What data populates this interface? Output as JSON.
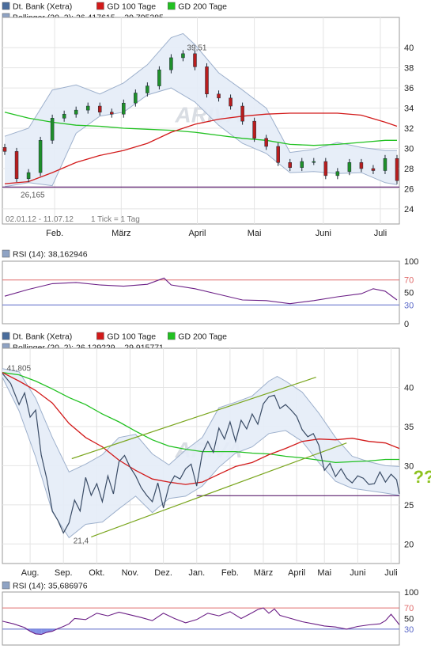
{
  "chart_data": [
    {
      "type": "line",
      "panel": "price",
      "legend": [
        {
          "label": "Dt. Bank (Xetra)",
          "color": "#4a6d9c"
        },
        {
          "label": "GD 100 Tage",
          "color": "#d21a1a"
        },
        {
          "label": "GD 200 Tage",
          "color": "#21c121"
        },
        {
          "label": "Bollinger (20, 2): 26,417615 – 29,795385",
          "color": "#8fa3c4"
        }
      ],
      "range_text": "02.01.12 - 11.07.12",
      "tick_text": "1 Tick = 1 Tag",
      "ylim": [
        22.5,
        43
      ],
      "yticks": [
        24,
        26,
        28,
        30,
        32,
        34,
        36,
        38,
        40
      ],
      "xticks": [
        {
          "label": "Feb.",
          "x": 22
        },
        {
          "label": "März",
          "x": 50
        },
        {
          "label": "April",
          "x": 82
        },
        {
          "label": "Mai",
          "x": 106
        },
        {
          "label": "Juni",
          "x": 135
        },
        {
          "label": "Juli",
          "x": 159
        }
      ],
      "annotations": [
        {
          "text": "39,51",
          "x": 77,
          "y": 39.51
        },
        {
          "text": "26,165",
          "x": 7,
          "y": 26.165
        }
      ],
      "hline": 26.165,
      "close": {
        "x": [
          1,
          6,
          11,
          16,
          21,
          26,
          31,
          36,
          41,
          46,
          51,
          56,
          61,
          66,
          71,
          76,
          81,
          86,
          91,
          96,
          101,
          106,
          111,
          116,
          121,
          126,
          131,
          136,
          141,
          146,
          151,
          156,
          161,
          166
        ],
        "y": [
          29.7,
          27.0,
          27.6,
          30.8,
          33.0,
          33.4,
          33.8,
          34.2,
          33.6,
          33.4,
          34.5,
          35.5,
          36.2,
          37.8,
          39.0,
          39.4,
          38.1,
          35.4,
          35.0,
          34.2,
          32.7,
          31.0,
          30.2,
          28.6,
          28.1,
          28.7,
          28.7,
          27.3,
          27.7,
          28.6,
          28.0,
          27.8,
          29.0,
          26.8
        ]
      },
      "bollinger_upper": {
        "x": [
          1,
          11,
          21,
          31,
          41,
          51,
          61,
          71,
          76,
          81,
          91,
          101,
          111,
          121,
          131,
          141,
          151,
          161,
          166
        ],
        "y": [
          31.2,
          32.0,
          35.8,
          36.3,
          35.4,
          36.5,
          38.3,
          41.0,
          41.4,
          40.3,
          37.5,
          35.8,
          34.0,
          29.6,
          29.9,
          30.6,
          30.1,
          29.8,
          29.8
        ]
      },
      "bollinger_lower": {
        "x": [
          1,
          11,
          21,
          31,
          41,
          51,
          61,
          71,
          81,
          91,
          101,
          111,
          121,
          131,
          141,
          151,
          161,
          166
        ],
        "y": [
          26.2,
          26.6,
          26.3,
          31.5,
          33.2,
          33.6,
          35.3,
          36.0,
          34.6,
          32.3,
          30.5,
          29.5,
          27.6,
          27.7,
          27.5,
          27.6,
          26.6,
          26.4
        ]
      },
      "gd100": {
        "x": [
          1,
          11,
          21,
          31,
          41,
          51,
          61,
          71,
          81,
          91,
          101,
          111,
          121,
          131,
          141,
          151,
          161,
          166
        ],
        "y": [
          26.5,
          26.7,
          27.6,
          28.6,
          29.3,
          29.8,
          30.5,
          31.6,
          32.4,
          32.9,
          33.2,
          33.4,
          33.5,
          33.5,
          33.5,
          33.3,
          32.6,
          32.2
        ]
      },
      "gd200": {
        "x": [
          1,
          11,
          21,
          31,
          41,
          51,
          61,
          71,
          81,
          91,
          101,
          111,
          121,
          131,
          141,
          151,
          161,
          166
        ],
        "y": [
          33.6,
          33.0,
          32.6,
          32.3,
          32.2,
          32.0,
          31.9,
          31.8,
          31.6,
          31.3,
          31.0,
          30.8,
          30.4,
          30.3,
          30.4,
          30.6,
          30.8,
          30.8
        ]
      }
    },
    {
      "type": "line",
      "panel": "rsi",
      "legend": [
        {
          "label": "RSI (14): 38,162946",
          "color": "#8fa3c4"
        }
      ],
      "ylim": [
        0,
        100
      ],
      "yticks": [
        0,
        30,
        50,
        70,
        100
      ],
      "levels": [
        {
          "value": 70,
          "color": "#e06c6c"
        },
        {
          "value": 30,
          "color": "#5a68c8"
        }
      ],
      "x": [
        1,
        11,
        21,
        31,
        41,
        51,
        61,
        68,
        71,
        81,
        91,
        101,
        111,
        121,
        131,
        141,
        151,
        156,
        161,
        166
      ],
      "y": [
        44,
        55,
        64,
        66,
        62,
        60,
        63,
        73,
        62,
        56,
        47,
        38,
        37,
        32,
        37,
        43,
        48,
        56,
        52,
        38
      ]
    },
    {
      "type": "line",
      "panel": "price",
      "legend": [
        {
          "label": "Dt. Bank (Xetra)",
          "color": "#4a6d9c"
        },
        {
          "label": "GD 100 Tage",
          "color": "#d21a1a"
        },
        {
          "label": "GD 200 Tage",
          "color": "#21c121"
        },
        {
          "label": "Bollinger (20, 2): 26,129229 – 29,915771",
          "color": "#8fa3c4"
        }
      ],
      "ylim": [
        17.5,
        45
      ],
      "yticks": [
        20,
        25,
        30,
        35,
        40
      ],
      "xticks": [
        {
          "label": "Aug.",
          "x": 10
        },
        {
          "label": "Sep.",
          "x": 22
        },
        {
          "label": "Okt.",
          "x": 34
        },
        {
          "label": "Nov.",
          "x": 46
        },
        {
          "label": "Dez.",
          "x": 58
        },
        {
          "label": "Jan.",
          "x": 70
        },
        {
          "label": "Feb.",
          "x": 82
        },
        {
          "label": "März",
          "x": 94
        },
        {
          "label": "April",
          "x": 106
        },
        {
          "label": "Mai",
          "x": 116
        },
        {
          "label": "Juni",
          "x": 128
        },
        {
          "label": "Juli",
          "x": 140
        }
      ],
      "annotations": [
        {
          "text": "41,805",
          "x": 1,
          "y": 41.805
        },
        {
          "text": "21,4",
          "x": 25,
          "y": 21.4
        },
        {
          "text": "???",
          "x": 148,
          "y": 28.6
        }
      ],
      "hline": 26.165,
      "close": {
        "x": [
          0,
          3,
          6,
          8,
          10,
          12,
          14,
          16,
          18,
          20,
          22,
          24,
          26,
          28,
          30,
          32,
          34,
          36,
          38,
          40,
          42,
          44,
          46,
          48,
          50,
          52,
          54,
          56,
          58,
          60,
          62,
          64,
          66,
          68,
          70,
          72,
          74,
          76,
          78,
          80,
          82,
          84,
          86,
          88,
          90,
          92,
          94,
          96,
          98,
          100,
          102,
          104,
          106,
          108,
          110,
          112,
          114,
          116,
          118,
          120,
          122,
          124,
          126,
          128,
          130,
          132,
          134,
          136,
          138,
          140,
          142,
          143
        ],
        "y": [
          41.8,
          40.5,
          37.8,
          39.3,
          36.2,
          37.1,
          31.4,
          28.3,
          24.2,
          23.0,
          21.4,
          22.7,
          25.6,
          24.2,
          28.5,
          26.2,
          27.7,
          25.4,
          28.7,
          26.4,
          30.5,
          31.3,
          29.8,
          28.7,
          27.2,
          26.2,
          25.4,
          27.8,
          24.6,
          27.4,
          28.7,
          28.3,
          29.6,
          30.2,
          27.4,
          31.6,
          33.1,
          31.7,
          34.8,
          33.4,
          35.6,
          33.1,
          35.8,
          34.7,
          36.6,
          35.3,
          37.9,
          38.8,
          39.0,
          37.3,
          37.8,
          37.1,
          36.3,
          34.6,
          33.7,
          34.1,
          32.6,
          29.4,
          30.3,
          28.6,
          29.6,
          28.4,
          27.8,
          28.7,
          28.4,
          27.6,
          27.7,
          29.2,
          27.9,
          28.9,
          28.2,
          26.4
        ]
      },
      "bollinger_upper": {
        "x": [
          0,
          6,
          12,
          18,
          24,
          30,
          36,
          42,
          48,
          54,
          60,
          66,
          72,
          78,
          84,
          90,
          96,
          99,
          102,
          108,
          114,
          120,
          126,
          132,
          138,
          143
        ],
        "y": [
          42.4,
          42.0,
          38.6,
          33.6,
          29.2,
          30.2,
          31.4,
          33.6,
          34.0,
          31.5,
          30.1,
          32.0,
          33.6,
          37.4,
          38.1,
          38.9,
          40.8,
          41.4,
          40.8,
          39.4,
          36.7,
          33.6,
          31.2,
          30.5,
          30.0,
          29.9
        ]
      },
      "bollinger_lower": {
        "x": [
          0,
          6,
          12,
          18,
          24,
          30,
          36,
          42,
          48,
          54,
          60,
          66,
          72,
          78,
          84,
          90,
          96,
          102,
          108,
          114,
          120,
          126,
          132,
          138,
          143
        ],
        "y": [
          41.3,
          37.0,
          31.1,
          24.1,
          20.8,
          22.5,
          22.8,
          24.5,
          26.1,
          24.0,
          25.8,
          26.1,
          27.4,
          29.8,
          31.6,
          32.4,
          34.1,
          34.5,
          33.1,
          30.4,
          28.0,
          27.1,
          26.8,
          26.5,
          26.2
        ]
      },
      "gd100": {
        "x": [
          0,
          6,
          12,
          18,
          24,
          30,
          36,
          42,
          48,
          54,
          60,
          66,
          72,
          78,
          84,
          90,
          96,
          102,
          108,
          114,
          120,
          126,
          132,
          138,
          143
        ],
        "y": [
          41.9,
          40.8,
          39.6,
          38.0,
          35.4,
          33.6,
          32.4,
          30.7,
          29.4,
          28.3,
          27.9,
          27.6,
          27.9,
          28.9,
          29.9,
          30.4,
          31.4,
          32.2,
          33.1,
          33.4,
          33.3,
          33.5,
          33.1,
          32.9,
          32.2
        ]
      },
      "gd200": {
        "x": [
          0,
          6,
          12,
          18,
          24,
          30,
          36,
          42,
          48,
          54,
          60,
          66,
          72,
          78,
          84,
          90,
          96,
          102,
          108,
          114,
          120,
          126,
          132,
          138,
          143
        ],
        "y": [
          41.9,
          41.6,
          40.8,
          39.8,
          38.7,
          37.8,
          36.6,
          35.6,
          34.4,
          33.3,
          32.5,
          32.1,
          31.8,
          31.8,
          31.8,
          31.6,
          31.5,
          31.2,
          31.0,
          30.7,
          30.4,
          30.5,
          30.6,
          30.8,
          30.8
        ]
      },
      "trend_upper": {
        "x": [
          25,
          113
        ],
        "y": [
          30.9,
          41.3
        ]
      },
      "trend_lower": {
        "x": [
          32,
          124
        ],
        "y": [
          20.9,
          32.9
        ]
      }
    },
    {
      "type": "line",
      "panel": "rsi",
      "legend": [
        {
          "label": "RSI (14): 35,686976",
          "color": "#8fa3c4"
        }
      ],
      "ylim": [
        0,
        100
      ],
      "yticks": [
        30,
        50,
        70,
        100
      ],
      "levels": [
        {
          "value": 70,
          "color": "#e06c6c"
        },
        {
          "value": 30,
          "color": "#5a68c8"
        }
      ],
      "x": [
        0,
        4,
        8,
        10,
        12,
        14,
        16,
        18,
        20,
        22,
        24,
        26,
        30,
        34,
        38,
        42,
        46,
        50,
        54,
        58,
        62,
        66,
        70,
        74,
        78,
        82,
        86,
        90,
        92,
        94,
        96,
        98,
        100,
        104,
        108,
        112,
        116,
        120,
        124,
        128,
        132,
        136,
        138,
        140,
        142,
        143
      ],
      "y": [
        45,
        40,
        33,
        26,
        21,
        20,
        24,
        26,
        31,
        35,
        40,
        50,
        48,
        60,
        55,
        62,
        57,
        52,
        46,
        60,
        50,
        42,
        48,
        60,
        55,
        63,
        50,
        61,
        67,
        70,
        60,
        68,
        56,
        50,
        44,
        40,
        36,
        34,
        30,
        35,
        38,
        40,
        46,
        58,
        45,
        38
      ]
    }
  ],
  "watermark": "ARIVA"
}
